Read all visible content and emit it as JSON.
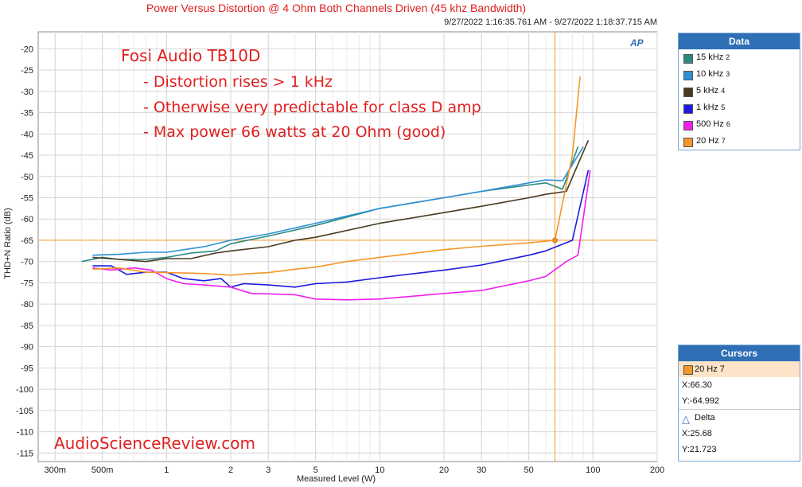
{
  "chart_data": {
    "type": "line",
    "title": "Power Versus Distortion @ 4 Ohm Both Channels Driven (45 khz Bandwidth)",
    "timestamp": "9/27/2022 1:16:35.761 AM - 9/27/2022 1:18:37.715 AM",
    "xlabel": "Measured Level (W)",
    "ylabel": "THD+N Ratio (dB)",
    "xscale": "log",
    "xlim": [
      0.25,
      200
    ],
    "ylim": [
      -117,
      -16
    ],
    "grid": true,
    "xticks": [
      {
        "v": 0.3,
        "label": "300m"
      },
      {
        "v": 0.5,
        "label": "500m"
      },
      {
        "v": 1,
        "label": "1"
      },
      {
        "v": 2,
        "label": "2"
      },
      {
        "v": 3,
        "label": "3"
      },
      {
        "v": 5,
        "label": "5"
      },
      {
        "v": 10,
        "label": "10"
      },
      {
        "v": 20,
        "label": "20"
      },
      {
        "v": 30,
        "label": "30"
      },
      {
        "v": 50,
        "label": "50"
      },
      {
        "v": 100,
        "label": "100"
      },
      {
        "v": 200,
        "label": "200"
      }
    ],
    "yticks": [
      -20,
      -25,
      -30,
      -35,
      -40,
      -45,
      -50,
      -55,
      -60,
      -65,
      -70,
      -75,
      -80,
      -85,
      -90,
      -95,
      -100,
      -105,
      -110,
      -115
    ],
    "series": [
      {
        "name": "15 kHz",
        "num": "2",
        "color": "#2a8a82",
        "points": [
          [
            0.4,
            -70
          ],
          [
            0.5,
            -69
          ],
          [
            0.6,
            -69.5
          ],
          [
            0.8,
            -69.5
          ],
          [
            1,
            -69
          ],
          [
            1.3,
            -68
          ],
          [
            1.7,
            -67.5
          ],
          [
            2,
            -65.8
          ],
          [
            3,
            -64
          ],
          [
            5,
            -61.5
          ],
          [
            10,
            -57.5
          ],
          [
            20,
            -55
          ],
          [
            30,
            -53.5
          ],
          [
            50,
            -52
          ],
          [
            60,
            -51.5
          ],
          [
            72,
            -53
          ],
          [
            85,
            -43
          ]
        ]
      },
      {
        "name": "10 kHz",
        "num": "3",
        "color": "#2d8fd5",
        "points": [
          [
            0.45,
            -68.5
          ],
          [
            0.6,
            -68.3
          ],
          [
            0.8,
            -67.8
          ],
          [
            1,
            -67.8
          ],
          [
            1.5,
            -66.5
          ],
          [
            2,
            -65
          ],
          [
            3,
            -63.5
          ],
          [
            5,
            -61
          ],
          [
            10,
            -57.5
          ],
          [
            20,
            -55
          ],
          [
            30,
            -53.5
          ],
          [
            50,
            -51.5
          ],
          [
            60,
            -50.8
          ],
          [
            72,
            -51
          ],
          [
            90,
            -43
          ]
        ]
      },
      {
        "name": "5 kHz",
        "num": "4",
        "color": "#4a3a20",
        "points": [
          [
            0.45,
            -69
          ],
          [
            0.6,
            -69.5
          ],
          [
            0.8,
            -70
          ],
          [
            1,
            -69.3
          ],
          [
            1.3,
            -69.3
          ],
          [
            1.7,
            -68
          ],
          [
            2,
            -67.5
          ],
          [
            3,
            -66.5
          ],
          [
            4,
            -65
          ],
          [
            5,
            -64.3
          ],
          [
            10,
            -61
          ],
          [
            20,
            -58.5
          ],
          [
            30,
            -57
          ],
          [
            50,
            -55
          ],
          [
            60,
            -54.2
          ],
          [
            75,
            -53.5
          ],
          [
            95,
            -41.5
          ]
        ]
      },
      {
        "name": "1 kHz",
        "num": "5",
        "color": "#1a1ae0",
        "points": [
          [
            0.45,
            -71
          ],
          [
            0.55,
            -71
          ],
          [
            0.65,
            -73
          ],
          [
            0.8,
            -72.5
          ],
          [
            1,
            -72.5
          ],
          [
            1.2,
            -74
          ],
          [
            1.5,
            -74.5
          ],
          [
            1.8,
            -74
          ],
          [
            2,
            -76
          ],
          [
            2.3,
            -75.2
          ],
          [
            3,
            -75.5
          ],
          [
            4,
            -76
          ],
          [
            5,
            -75.2
          ],
          [
            7,
            -74.8
          ],
          [
            10,
            -73.8
          ],
          [
            20,
            -72
          ],
          [
            30,
            -70.8
          ],
          [
            50,
            -68.5
          ],
          [
            60,
            -67.5
          ],
          [
            80,
            -65
          ],
          [
            95,
            -48.5
          ]
        ]
      },
      {
        "name": "500 Hz",
        "num": "6",
        "color": "#f020f0",
        "points": [
          [
            0.45,
            -71.5
          ],
          [
            0.55,
            -72
          ],
          [
            0.7,
            -71.5
          ],
          [
            0.85,
            -72
          ],
          [
            1,
            -74
          ],
          [
            1.2,
            -75.2
          ],
          [
            1.5,
            -75.5
          ],
          [
            2,
            -76
          ],
          [
            2.5,
            -77.5
          ],
          [
            3,
            -77.6
          ],
          [
            4,
            -77.8
          ],
          [
            5,
            -78.8
          ],
          [
            7,
            -79
          ],
          [
            10,
            -78.8
          ],
          [
            20,
            -77.5
          ],
          [
            30,
            -76.8
          ],
          [
            50,
            -74.5
          ],
          [
            60,
            -73.5
          ],
          [
            75,
            -70
          ],
          [
            85,
            -68.5
          ],
          [
            97,
            -48.5
          ]
        ]
      },
      {
        "name": "20 Hz",
        "num": "7",
        "color": "#f5962a",
        "points": [
          [
            0.45,
            -71.8
          ],
          [
            0.6,
            -71.5
          ],
          [
            0.8,
            -72.5
          ],
          [
            1,
            -72.6
          ],
          [
            1.5,
            -72.8
          ],
          [
            2,
            -73.2
          ],
          [
            2.5,
            -72.8
          ],
          [
            3,
            -72.6
          ],
          [
            4,
            -71.8
          ],
          [
            5,
            -71.3
          ],
          [
            7,
            -70
          ],
          [
            10,
            -69
          ],
          [
            20,
            -67.2
          ],
          [
            30,
            -66.4
          ],
          [
            50,
            -65.6
          ],
          [
            66.3,
            -64.99
          ],
          [
            80,
            -45
          ],
          [
            87,
            -26.5
          ]
        ]
      }
    ],
    "cursor": {
      "x": 66.3,
      "y": -64.992,
      "color": "#f5962a"
    }
  },
  "legend_panel": {
    "title": "Data",
    "items": [
      {
        "name": "15 kHz",
        "num": "2",
        "color": "#2a8a82"
      },
      {
        "name": "10 kHz",
        "num": "3",
        "color": "#2d8fd5"
      },
      {
        "name": "5 kHz",
        "num": "4",
        "color": "#4a3a20"
      },
      {
        "name": "1 kHz",
        "num": "5",
        "color": "#1a1ae0"
      },
      {
        "name": "500 Hz",
        "num": "6",
        "color": "#f020f0"
      },
      {
        "name": "20 Hz",
        "num": "7",
        "color": "#f5962a"
      }
    ]
  },
  "cursors_panel": {
    "title": "Cursors",
    "selected": "20 Hz 7",
    "selected_color": "#f5962a",
    "x_text": "X:66.30",
    "y_text": "Y:-64.992",
    "delta_label": "Delta",
    "dx_text": "X:25.68",
    "dy_text": "Y:21.723"
  },
  "annotations": {
    "product": "Fosi Audio TB10D",
    "line1": "- Distortion rises > 1 kHz",
    "line2": "- Otherwise very predictable for class D amp",
    "line3": "- Max power 66 watts at 20 Ohm (good)",
    "watermark": "AudioScienceReview.com"
  },
  "logo_text": "AP"
}
